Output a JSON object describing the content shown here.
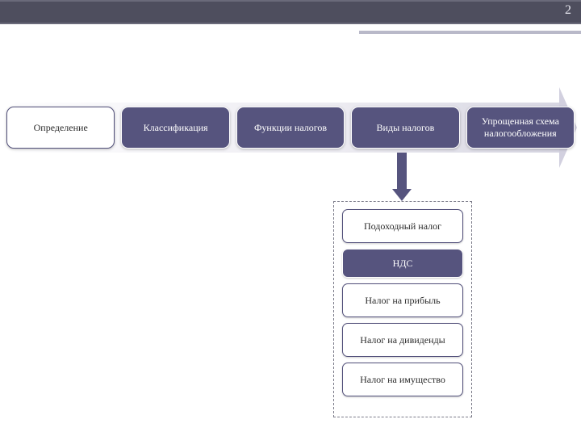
{
  "page_number": "2",
  "colors": {
    "topbar_bg": "#4e4e5e",
    "topbar_border": "#6a6a7a",
    "accent_line": "#b9b9c9",
    "arrow_gradient_start": "#fdfdfe",
    "arrow_gradient_end": "#d7d6e2",
    "box_dark_bg": "#56547e",
    "box_dark_text": "#ffffff",
    "box_light_bg": "#ffffff",
    "box_light_border": "#52507a",
    "box_light_text": "#2a2a2a",
    "dashed_border": "#7a7a88"
  },
  "typography": {
    "font_family": "Georgia, serif",
    "main_box_fontsize": 12,
    "sub_box_fontsize": 12,
    "page_number_fontsize": 16
  },
  "main_row": {
    "items": [
      {
        "label": "Определение",
        "style": "light"
      },
      {
        "label": "Классификация",
        "style": "dark"
      },
      {
        "label": "Функции налогов",
        "style": "dark"
      },
      {
        "label": "Виды налогов",
        "style": "dark"
      },
      {
        "label": "Упрощенная схема налогообложения",
        "style": "dark"
      }
    ]
  },
  "sub_items": {
    "parent_index": 3,
    "items": [
      {
        "label": "Подоходный налог",
        "style": "light"
      },
      {
        "label": "НДС",
        "style": "dark"
      },
      {
        "label": "Налог на прибыль",
        "style": "light"
      },
      {
        "label": "Налог на дивиденды",
        "style": "light"
      },
      {
        "label": "Налог на имущество",
        "style": "light"
      }
    ]
  }
}
